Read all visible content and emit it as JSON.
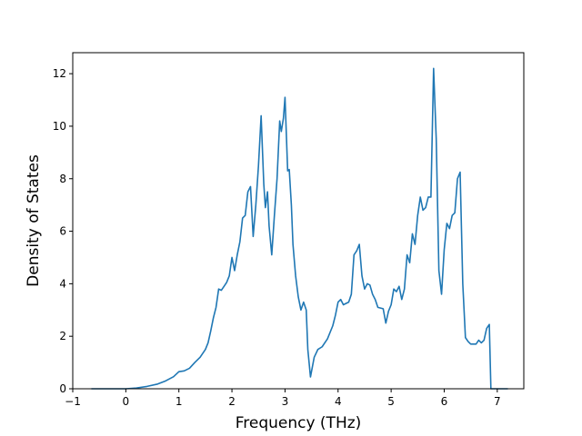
{
  "chart_data": {
    "type": "line",
    "title": "",
    "xlabel": "Frequency (THz)",
    "ylabel": "Density of States",
    "xlim": [
      -1.0,
      7.5
    ],
    "ylim": [
      0,
      12.8
    ],
    "x_ticks": [
      -1,
      0,
      1,
      2,
      3,
      4,
      5,
      6,
      7
    ],
    "y_ticks": [
      0,
      2,
      4,
      6,
      8,
      10,
      12
    ],
    "grid": false,
    "legend": "none",
    "color": "#1f77b4",
    "series": [
      {
        "values": [
          [
            -0.65,
            0.0
          ],
          [
            0.0,
            0.0
          ],
          [
            0.2,
            0.03
          ],
          [
            0.4,
            0.09
          ],
          [
            0.6,
            0.18
          ],
          [
            0.75,
            0.3
          ],
          [
            0.9,
            0.46
          ],
          [
            1.0,
            0.65
          ],
          [
            1.1,
            0.68
          ],
          [
            1.2,
            0.78
          ],
          [
            1.3,
            1.0
          ],
          [
            1.4,
            1.2
          ],
          [
            1.5,
            1.5
          ],
          [
            1.55,
            1.75
          ],
          [
            1.6,
            2.2
          ],
          [
            1.65,
            2.7
          ],
          [
            1.7,
            3.1
          ],
          [
            1.75,
            3.8
          ],
          [
            1.8,
            3.75
          ],
          [
            1.85,
            3.9
          ],
          [
            1.9,
            4.05
          ],
          [
            1.95,
            4.3
          ],
          [
            2.0,
            5.0
          ],
          [
            2.05,
            4.5
          ],
          [
            2.1,
            5.1
          ],
          [
            2.15,
            5.6
          ],
          [
            2.2,
            6.5
          ],
          [
            2.25,
            6.6
          ],
          [
            2.3,
            7.5
          ],
          [
            2.35,
            7.7
          ],
          [
            2.4,
            5.8
          ],
          [
            2.45,
            7.0
          ],
          [
            2.5,
            8.5
          ],
          [
            2.55,
            10.4
          ],
          [
            2.6,
            7.8
          ],
          [
            2.63,
            6.9
          ],
          [
            2.67,
            7.5
          ],
          [
            2.7,
            6.2
          ],
          [
            2.75,
            5.1
          ],
          [
            2.8,
            6.6
          ],
          [
            2.85,
            8.0
          ],
          [
            2.9,
            10.2
          ],
          [
            2.93,
            9.8
          ],
          [
            2.97,
            10.3
          ],
          [
            3.0,
            11.1
          ],
          [
            3.05,
            8.3
          ],
          [
            3.08,
            8.35
          ],
          [
            3.12,
            7.0
          ],
          [
            3.15,
            5.5
          ],
          [
            3.2,
            4.3
          ],
          [
            3.25,
            3.5
          ],
          [
            3.3,
            3.0
          ],
          [
            3.35,
            3.3
          ],
          [
            3.4,
            3.0
          ],
          [
            3.43,
            1.5
          ],
          [
            3.48,
            0.45
          ],
          [
            3.55,
            1.2
          ],
          [
            3.62,
            1.5
          ],
          [
            3.7,
            1.6
          ],
          [
            3.8,
            1.9
          ],
          [
            3.9,
            2.4
          ],
          [
            3.95,
            2.8
          ],
          [
            4.0,
            3.3
          ],
          [
            4.05,
            3.4
          ],
          [
            4.1,
            3.2
          ],
          [
            4.2,
            3.3
          ],
          [
            4.25,
            3.6
          ],
          [
            4.3,
            5.1
          ],
          [
            4.35,
            5.25
          ],
          [
            4.4,
            5.5
          ],
          [
            4.45,
            4.3
          ],
          [
            4.5,
            3.8
          ],
          [
            4.55,
            4.0
          ],
          [
            4.6,
            3.95
          ],
          [
            4.65,
            3.6
          ],
          [
            4.7,
            3.4
          ],
          [
            4.75,
            3.1
          ],
          [
            4.85,
            3.05
          ],
          [
            4.9,
            2.5
          ],
          [
            4.95,
            2.95
          ],
          [
            5.0,
            3.2
          ],
          [
            5.05,
            3.8
          ],
          [
            5.1,
            3.7
          ],
          [
            5.15,
            3.9
          ],
          [
            5.2,
            3.4
          ],
          [
            5.25,
            3.8
          ],
          [
            5.3,
            5.1
          ],
          [
            5.35,
            4.8
          ],
          [
            5.4,
            5.9
          ],
          [
            5.45,
            5.5
          ],
          [
            5.5,
            6.6
          ],
          [
            5.55,
            7.3
          ],
          [
            5.6,
            6.8
          ],
          [
            5.65,
            6.9
          ],
          [
            5.7,
            7.3
          ],
          [
            5.75,
            7.3
          ],
          [
            5.8,
            12.2
          ],
          [
            5.85,
            9.5
          ],
          [
            5.9,
            4.5
          ],
          [
            5.95,
            3.6
          ],
          [
            6.0,
            5.3
          ],
          [
            6.05,
            6.3
          ],
          [
            6.1,
            6.1
          ],
          [
            6.15,
            6.6
          ],
          [
            6.2,
            6.7
          ],
          [
            6.25,
            8.0
          ],
          [
            6.3,
            8.25
          ],
          [
            6.35,
            4.0
          ],
          [
            6.4,
            1.95
          ],
          [
            6.45,
            1.8
          ],
          [
            6.5,
            1.7
          ],
          [
            6.6,
            1.7
          ],
          [
            6.65,
            1.85
          ],
          [
            6.7,
            1.75
          ],
          [
            6.75,
            1.85
          ],
          [
            6.8,
            2.3
          ],
          [
            6.85,
            2.45
          ],
          [
            6.88,
            0.0
          ],
          [
            7.2,
            0.0
          ]
        ]
      }
    ]
  }
}
